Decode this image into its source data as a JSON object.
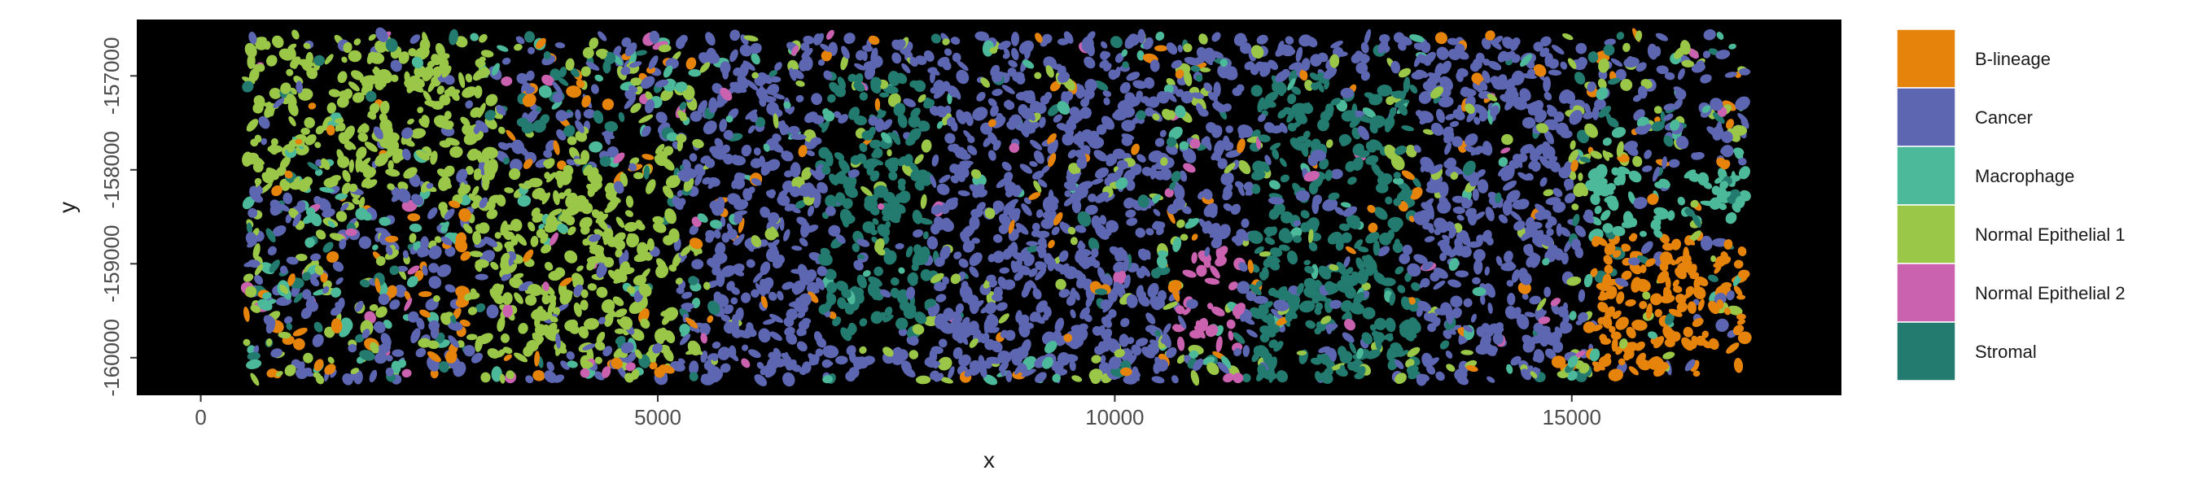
{
  "chart_data": {
    "type": "scatter",
    "title": "",
    "xlabel": "x",
    "ylabel": "y",
    "xlim": [
      -700,
      17950
    ],
    "ylim": [
      -160400,
      -156400
    ],
    "x_ticks": [
      {
        "value": 0,
        "label": "0"
      },
      {
        "value": 5000,
        "label": "5000"
      },
      {
        "value": 10000,
        "label": "10000"
      },
      {
        "value": 15000,
        "label": "15000"
      }
    ],
    "y_ticks": [
      {
        "value": -157000,
        "label": "-157000"
      },
      {
        "value": -158000,
        "label": "-158000"
      },
      {
        "value": -159000,
        "label": "-159000"
      },
      {
        "value": -160000,
        "label": "-160000"
      }
    ],
    "panel_background": "#000000",
    "grid": false,
    "legend_position": "right",
    "data_extent": {
      "x": [
        500,
        16900
      ],
      "y": [
        -160240,
        -156560
      ]
    },
    "legend": [
      {
        "name": "B-lineage",
        "color": "#E6830B"
      },
      {
        "name": "Cancer",
        "color": "#5D66B0"
      },
      {
        "name": "Macrophage",
        "color": "#4DB99B"
      },
      {
        "name": "Normal Epithelial 1",
        "color": "#9AC748"
      },
      {
        "name": "Normal Epithelial 2",
        "color": "#CA62B0"
      },
      {
        "name": "Stromal",
        "color": "#237A6E"
      }
    ],
    "density_regions": [
      {
        "category": "B-lineage",
        "x": [
          2800,
          5000
        ],
        "y": [
          -159800,
          -158300
        ]
      },
      {
        "category": "B-lineage",
        "x": [
          8400,
          9400
        ],
        "y": [
          -159900,
          -158600
        ]
      },
      {
        "category": "B-lineage",
        "x": [
          15200,
          16900
        ],
        "y": [
          -160200,
          -158600
        ]
      },
      {
        "category": "Cancer",
        "x": [
          5500,
          10500
        ],
        "y": [
          -160200,
          -156600
        ]
      },
      {
        "category": "Cancer",
        "x": [
          11000,
          15000
        ],
        "y": [
          -160000,
          -156600
        ]
      },
      {
        "category": "Normal Epithelial 1",
        "x": [
          500,
          3200
        ],
        "y": [
          -158200,
          -156600
        ]
      },
      {
        "category": "Normal Epithelial 1",
        "x": [
          2900,
          5200
        ],
        "y": [
          -160000,
          -158000
        ]
      },
      {
        "category": "Normal Epithelial 2",
        "x": [
          10700,
          11400
        ],
        "y": [
          -159900,
          -158800
        ]
      },
      {
        "category": "Stromal",
        "x": [
          6800,
          8000
        ],
        "y": [
          -159800,
          -157000
        ]
      },
      {
        "category": "Stromal",
        "x": [
          11500,
          13300
        ],
        "y": [
          -160200,
          -157000
        ]
      },
      {
        "category": "Macrophage",
        "x": [
          15200,
          16900
        ],
        "y": [
          -158700,
          -158000
        ]
      }
    ]
  }
}
